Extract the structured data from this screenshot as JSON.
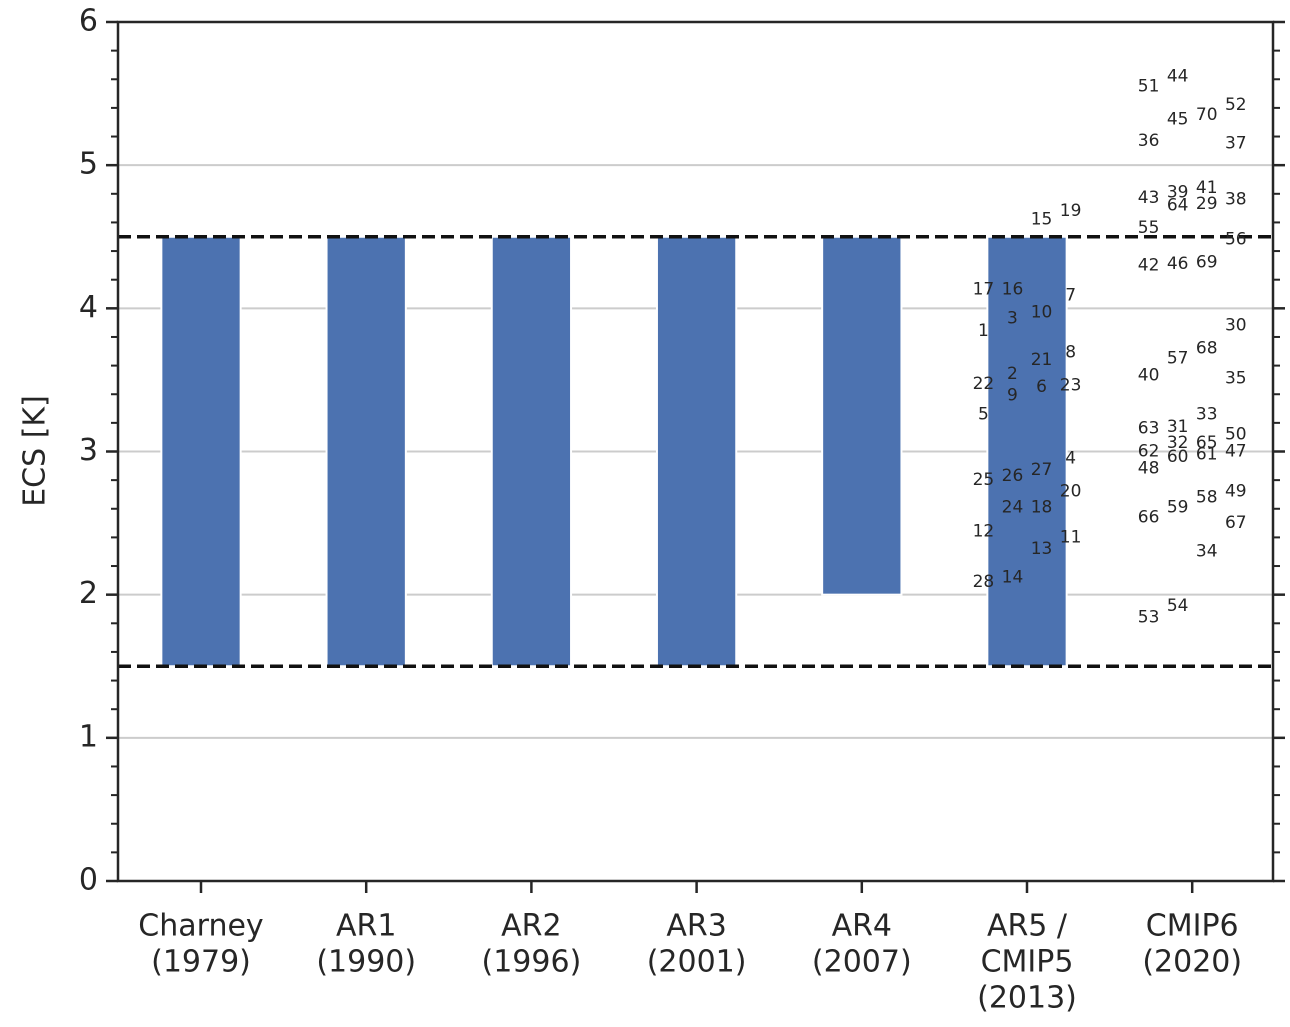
{
  "chart_data": {
    "type": "range-bar",
    "y_label": "ECS [K]",
    "categories": [
      [
        "Charney",
        "(1979)"
      ],
      [
        "AR1",
        "(1990)"
      ],
      [
        "AR2",
        "(1996)"
      ],
      [
        "AR3",
        "(2001)"
      ],
      [
        "AR4",
        "(2007)"
      ],
      [
        "AR5 /",
        "CMIP5",
        "(2013)"
      ],
      [
        "CMIP6",
        "(2020)"
      ]
    ],
    "low": [
      1.5,
      1.5,
      1.5,
      1.5,
      2.0,
      1.5,
      null
    ],
    "high": [
      4.5,
      4.5,
      4.5,
      4.5,
      4.5,
      4.5,
      null
    ],
    "color": "#4c72b0",
    "hlines": [
      1.5,
      4.5
    ],
    "ylim": [
      0,
      6
    ],
    "yticks": [
      0,
      1,
      2,
      3,
      4,
      5,
      6
    ],
    "yminorticks": [
      0.2,
      0.4,
      0.6,
      0.8,
      1.2,
      1.4,
      1.6,
      1.8,
      2.2,
      2.4,
      2.6,
      2.8,
      3.2,
      3.4,
      3.6,
      3.8,
      4.2,
      4.4,
      4.6,
      4.8,
      5.2,
      5.4,
      5.6,
      5.8
    ],
    "grid": true,
    "models": {
      "labels": [
        "17",
        "16",
        "7",
        "3",
        "10",
        "1",
        "21",
        "8",
        "2",
        "22",
        "9",
        "6",
        "23",
        "5",
        "27",
        "4",
        "25",
        "26",
        "20",
        "24",
        "18",
        "12",
        "11",
        "13",
        "28",
        "14",
        "15",
        "19",
        "51",
        "44",
        "45",
        "70",
        "52",
        "36",
        "37",
        "43",
        "39",
        "41",
        "64",
        "29",
        "38",
        "55",
        "56",
        "42",
        "46",
        "69",
        "30",
        "68",
        "57",
        "40",
        "35",
        "33",
        "63",
        "31",
        "50",
        "62",
        "32",
        "65",
        "60",
        "61",
        "47",
        "48",
        "58",
        "49",
        "59",
        "66",
        "67",
        "34",
        "53",
        "54"
      ],
      "x": [
        4.736,
        4.912,
        5.264,
        4.912,
        5.088,
        4.736,
        5.088,
        5.264,
        4.912,
        4.736,
        4.912,
        5.088,
        5.264,
        4.736,
        5.088,
        5.264,
        4.736,
        4.912,
        5.264,
        4.912,
        5.088,
        4.736,
        5.264,
        5.088,
        4.736,
        4.912,
        5.088,
        5.264,
        5.736,
        5.912,
        5.912,
        6.088,
        6.264,
        5.736,
        6.264,
        5.736,
        5.912,
        6.088,
        5.912,
        6.088,
        6.264,
        5.736,
        6.264,
        5.736,
        5.912,
        6.088,
        6.264,
        6.088,
        5.912,
        5.736,
        6.264,
        6.088,
        5.736,
        5.912,
        6.264,
        5.736,
        5.912,
        6.088,
        5.912,
        6.088,
        6.264,
        5.736,
        6.088,
        6.264,
        5.912,
        5.736,
        6.264,
        6.088,
        5.736,
        5.912
      ],
      "values": [
        4.13,
        4.13,
        4.09,
        3.93,
        3.97,
        3.84,
        3.64,
        3.69,
        3.54,
        3.47,
        3.39,
        3.45,
        3.46,
        3.26,
        2.87,
        2.95,
        2.8,
        2.83,
        2.72,
        2.61,
        2.61,
        2.44,
        2.4,
        2.32,
        2.09,
        2.12,
        4.62,
        4.68,
        5.55,
        5.62,
        5.32,
        5.35,
        5.42,
        5.17,
        5.15,
        4.77,
        4.81,
        4.84,
        4.72,
        4.73,
        4.76,
        4.56,
        4.48,
        4.3,
        4.31,
        4.32,
        3.88,
        3.72,
        3.65,
        3.53,
        3.51,
        3.26,
        3.16,
        3.17,
        3.12,
        3.0,
        3.06,
        3.06,
        2.96,
        2.98,
        3.0,
        2.88,
        2.68,
        2.72,
        2.61,
        2.54,
        2.5,
        2.3,
        1.84,
        1.92
      ]
    }
  }
}
